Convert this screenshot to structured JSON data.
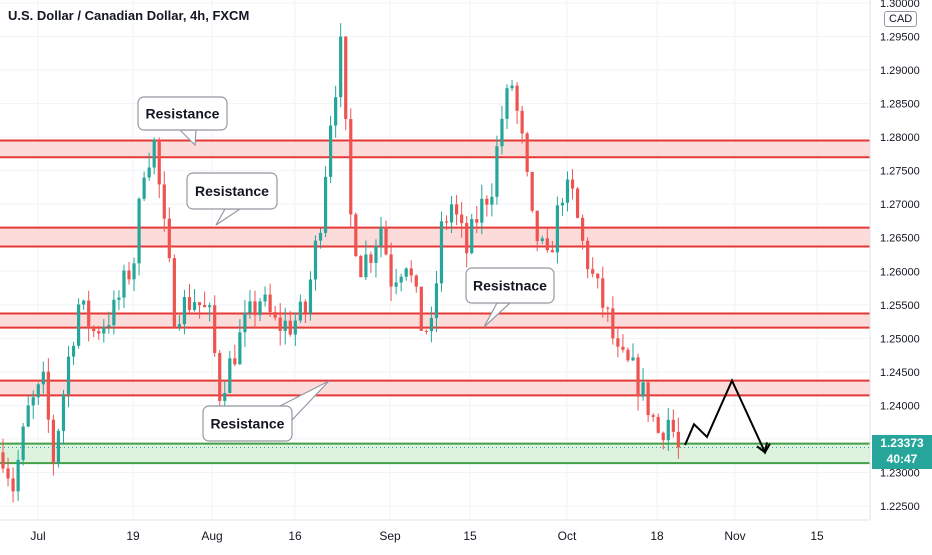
{
  "header": {
    "title": "U.S. Dollar / Canadian Dollar, 4h, FXCM",
    "currency": "CAD"
  },
  "price_badge": {
    "price": "1.23373",
    "countdown": "40:47",
    "color": "#26a69a"
  },
  "colors": {
    "up": "#26a69a",
    "down": "#ef5350",
    "resistance_line": "#e53935",
    "resistance_fill": "#fbd5d5",
    "support_line": "#43a047",
    "support_fill": "#d9f2d9",
    "projection": "#000000"
  },
  "chart_data": {
    "type": "candlestick",
    "instrument": "U.S. Dollar / Canadian Dollar",
    "timeframe": "4h",
    "source": "FXCM",
    "ylim": [
      1.2218,
      1.3
    ],
    "y_ticks": [
      "1.30000",
      "1.29500",
      "1.29000",
      "1.28500",
      "1.28000",
      "1.27500",
      "1.27000",
      "1.26500",
      "1.26000",
      "1.25500",
      "1.25000",
      "1.24500",
      "1.24000",
      "1.23500",
      "1.23000",
      "1.22500"
    ],
    "x_ticks": [
      "Jul",
      "19",
      "Aug",
      "16",
      "Sep",
      "15",
      "Oct",
      "18",
      "Nov",
      "15"
    ],
    "last_price": 1.23373,
    "path_anchors": [
      [
        0,
        1.233
      ],
      [
        2,
        1.228
      ],
      [
        5,
        1.239
      ],
      [
        8,
        1.243
      ],
      [
        10,
        1.232
      ],
      [
        13,
        1.247
      ],
      [
        15,
        1.255
      ],
      [
        18,
        1.251
      ],
      [
        22,
        1.254
      ],
      [
        26,
        1.262
      ],
      [
        28,
        1.276
      ],
      [
        30,
        1.279
      ],
      [
        32,
        1.266
      ],
      [
        34,
        1.254
      ],
      [
        38,
        1.256
      ],
      [
        41,
        1.253
      ],
      [
        43,
        1.242
      ],
      [
        45,
        1.246
      ],
      [
        48,
        1.252
      ],
      [
        51,
        1.256
      ],
      [
        54,
        1.252
      ],
      [
        57,
        1.252
      ],
      [
        60,
        1.254
      ],
      [
        63,
        1.268
      ],
      [
        65,
        1.283
      ],
      [
        67,
        1.293
      ],
      [
        69,
        1.268
      ],
      [
        71,
        1.261
      ],
      [
        73,
        1.263
      ],
      [
        75,
        1.267
      ],
      [
        77,
        1.259
      ],
      [
        80,
        1.262
      ],
      [
        83,
        1.252
      ],
      [
        85,
        1.251
      ],
      [
        87,
        1.266
      ],
      [
        89,
        1.27
      ],
      [
        92,
        1.263
      ],
      [
        94,
        1.268
      ],
      [
        97,
        1.273
      ],
      [
        99,
        1.283
      ],
      [
        101,
        1.288
      ],
      [
        103,
        1.279
      ],
      [
        105,
        1.267
      ],
      [
        108,
        1.261
      ],
      [
        111,
        1.272
      ],
      [
        113,
        1.271
      ],
      [
        115,
        1.264
      ],
      [
        117,
        1.259
      ],
      [
        120,
        1.253
      ],
      [
        122,
        1.247
      ],
      [
        125,
        1.245
      ],
      [
        128,
        1.24
      ],
      [
        130,
        1.236
      ],
      [
        132,
        1.238
      ],
      [
        134,
        1.234
      ]
    ],
    "resistance_zones": [
      {
        "label": "Resistance",
        "top": 1.2795,
        "bottom": 1.277
      },
      {
        "label": "Resistance",
        "top": 1.2665,
        "bottom": 1.2637
      },
      {
        "label": "Resistnace",
        "top": 1.2537,
        "bottom": 1.2516
      },
      {
        "label": "Resistance",
        "top": 1.2437,
        "bottom": 1.2415
      }
    ],
    "support_zone": {
      "top": 1.2343,
      "bottom": 1.2314
    },
    "labels": [
      "Resistance",
      "Resistance",
      "Resistnace",
      "Resistance"
    ],
    "projection_path": [
      [
        1.2341,
        0
      ],
      [
        1.2372,
        1
      ],
      [
        1.2353,
        2
      ],
      [
        1.2437,
        3
      ],
      [
        1.233,
        4
      ],
      [
        1.2343,
        5
      ]
    ]
  }
}
